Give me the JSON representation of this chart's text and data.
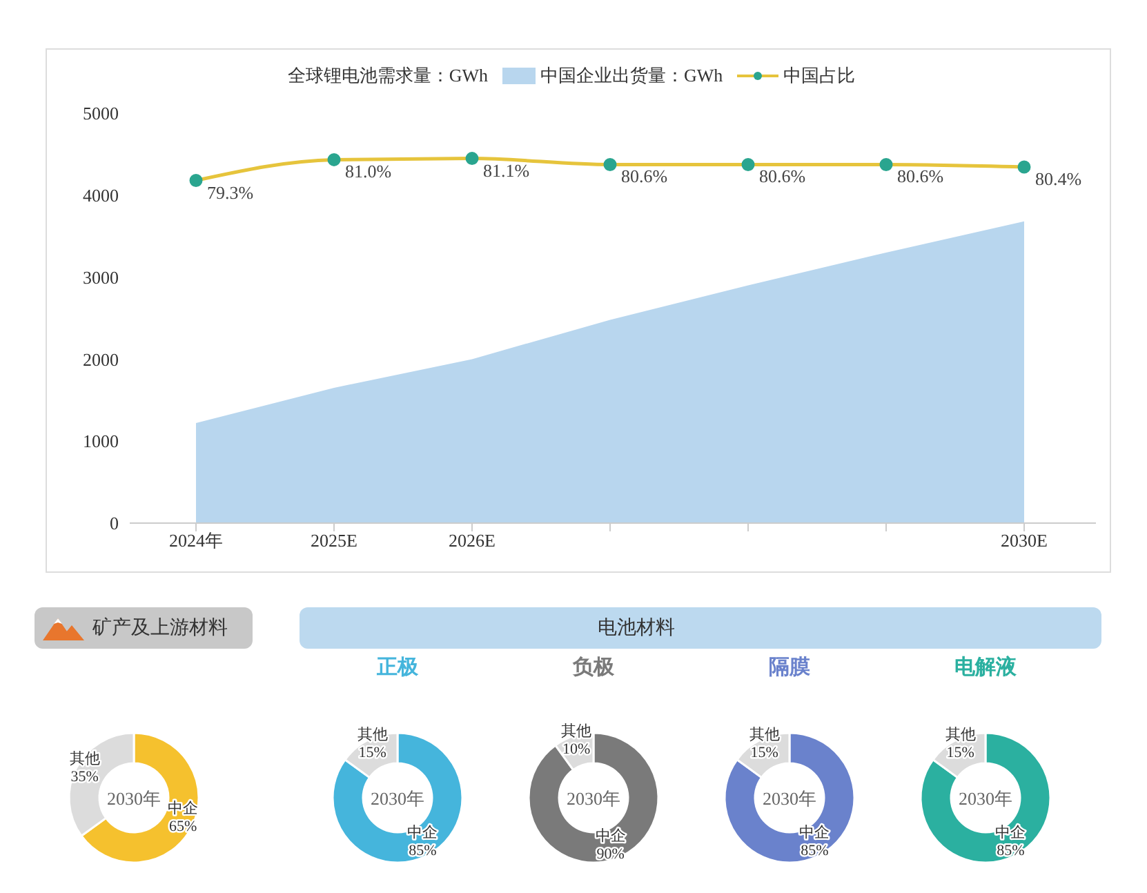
{
  "chart_data": [
    {
      "type": "area",
      "categories": [
        "2024年",
        "2025E",
        "2026E",
        null,
        null,
        null,
        "2030E"
      ],
      "series": [
        {
          "name": "中国企业出货量：GWh",
          "type": "area",
          "color": "#b8d6ee",
          "values": [
            1220,
            1650,
            2000,
            2480,
            2900,
            3300,
            3680
          ]
        },
        {
          "name": "中国占比",
          "type": "line",
          "axis": "y2",
          "marker": "circle",
          "color": "#e6c43c",
          "values": [
            79.3,
            81.0,
            81.1,
            80.6,
            80.6,
            80.6,
            80.4
          ],
          "value_labels": [
            "79.3%",
            "81.0%",
            "81.1%",
            "80.6%",
            "80.6%",
            "80.6%",
            "80.4%"
          ]
        }
      ],
      "ylim": [
        0,
        5000
      ],
      "yticks": [
        0,
        1000,
        2000,
        3000,
        4000,
        5000
      ],
      "grid": false,
      "legend": "top",
      "line_style": "solid",
      "annotations": [
        "全球锂电池需求量：GWh"
      ]
    },
    {
      "type": "donut",
      "title": "矿产及上游材料",
      "categories": [
        "中企",
        "其他"
      ],
      "values": [
        65,
        35
      ],
      "colors": [
        "#f5c12e",
        "#dcdcdc"
      ],
      "value_labels": [
        "65%",
        "35%"
      ],
      "annotations": [
        "2030年"
      ]
    },
    {
      "type": "other",
      "title": "电池材料"
    },
    {
      "type": "donut",
      "title": "正极",
      "categories": [
        "中企",
        "其他"
      ],
      "values": [
        85,
        15
      ],
      "colors": [
        "#45b5dc",
        "#dcdcdc"
      ],
      "value_labels": [
        "85%",
        "15%"
      ],
      "annotations": [
        "2030年"
      ]
    },
    {
      "type": "donut",
      "title": "负极",
      "categories": [
        "中企",
        "其他"
      ],
      "values": [
        90,
        10
      ],
      "colors": [
        "#7a7a7a",
        "#dcdcdc"
      ],
      "value_labels": [
        "90%",
        "10%"
      ],
      "annotations": [
        "2030年"
      ]
    },
    {
      "type": "donut",
      "title": "隔膜",
      "categories": [
        "中企",
        "其他"
      ],
      "values": [
        85,
        15
      ],
      "colors": [
        "#6a82cc",
        "#dcdcdc"
      ],
      "value_labels": [
        "85%",
        "15%"
      ],
      "annotations": [
        "2030年"
      ]
    },
    {
      "type": "donut",
      "title": "电解液",
      "categories": [
        "中企",
        "其他"
      ],
      "values": [
        85,
        15
      ],
      "colors": [
        "#2bb0a0",
        "#dcdcdc"
      ],
      "value_labels": [
        "85%",
        "15%"
      ],
      "annotations": [
        "2030年"
      ]
    }
  ]
}
